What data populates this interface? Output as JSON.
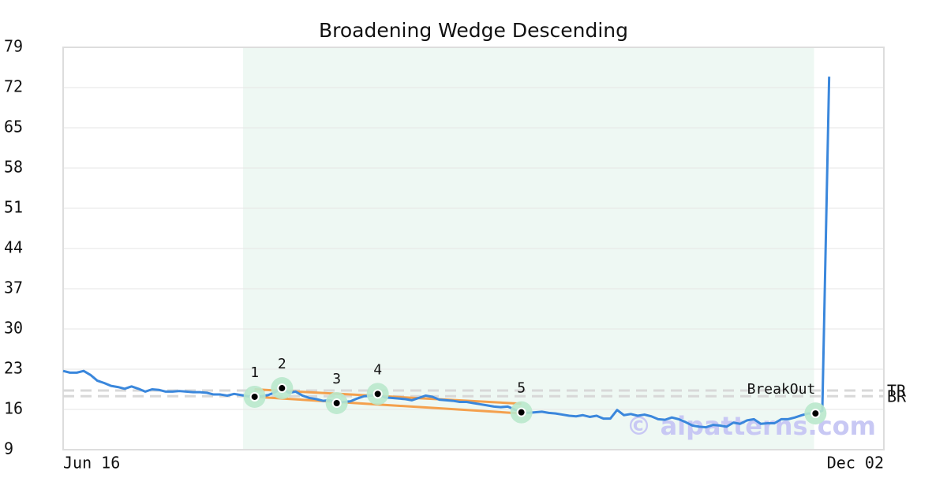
{
  "chart_data": {
    "type": "line",
    "title": "Broadening Wedge Descending",
    "watermark": "© aipatterns.com",
    "color": "#3a87dc",
    "xlim": [
      0,
      120
    ],
    "xticks": [
      {
        "value": 0,
        "label": "Jun 16"
      },
      {
        "value": 120,
        "label": "Dec 02"
      }
    ],
    "ylim": [
      9,
      79
    ],
    "yticks": [
      9,
      16,
      23,
      30,
      37,
      44,
      51,
      58,
      65,
      72,
      79
    ],
    "grid": true,
    "highlight": [
      26.3,
      109.8
    ],
    "x": [
      0,
      1,
      2,
      3,
      4,
      5,
      6,
      7,
      8,
      9,
      10,
      11,
      12,
      13,
      14,
      15,
      16,
      17,
      18,
      19,
      20,
      21,
      22,
      23,
      24,
      25,
      26,
      27,
      28,
      29,
      30,
      31,
      32,
      33,
      34,
      35,
      36,
      37,
      38,
      39,
      40,
      41,
      42,
      43,
      44,
      45,
      46,
      47,
      48,
      49,
      50,
      51,
      52,
      53,
      54,
      55,
      56,
      57,
      58,
      59,
      60,
      61,
      62,
      63,
      64,
      65,
      66,
      67,
      68,
      69,
      70,
      71,
      72,
      73,
      74,
      75,
      76,
      77,
      78,
      79,
      80,
      81,
      82,
      83,
      84,
      85,
      86,
      87,
      88,
      89,
      90,
      91,
      92,
      93,
      94,
      95,
      96,
      97,
      98,
      99,
      100,
      101,
      102,
      103,
      104,
      105,
      106,
      107,
      108,
      109,
      110,
      111,
      112
    ],
    "values": [
      22.7,
      22.4,
      22.4,
      22.7,
      22.0,
      21.0,
      20.6,
      20.1,
      19.9,
      19.6,
      20.0,
      19.6,
      19.1,
      19.5,
      19.4,
      19.1,
      19.1,
      19.2,
      19.1,
      19.0,
      19.0,
      18.9,
      18.6,
      18.6,
      18.4,
      18.7,
      18.5,
      18.3,
      18.2,
      18.3,
      18.5,
      19.0,
      19.7,
      18.9,
      19.1,
      18.4,
      18.0,
      17.8,
      17.5,
      17.6,
      17.1,
      17.3,
      17.4,
      17.9,
      18.3,
      18.4,
      18.7,
      18.1,
      18.0,
      17.9,
      17.8,
      17.6,
      18.0,
      18.4,
      18.2,
      17.7,
      17.6,
      17.5,
      17.3,
      17.3,
      17.1,
      16.9,
      16.7,
      16.5,
      16.4,
      16.5,
      16.0,
      15.5,
      15.4,
      15.5,
      15.6,
      15.4,
      15.3,
      15.1,
      14.9,
      14.8,
      15.0,
      14.7,
      14.9,
      14.4,
      14.4,
      15.9,
      15.0,
      15.2,
      14.9,
      15.1,
      14.8,
      14.3,
      14.2,
      14.6,
      14.3,
      13.8,
      13.2,
      13.0,
      12.9,
      13.3,
      13.2,
      13.0,
      13.7,
      13.5,
      14.1,
      14.3,
      13.5,
      13.6,
      13.6,
      14.3,
      14.3,
      14.6,
      15.0,
      15.3,
      15.3,
      15.8,
      73.9
    ],
    "trendlines": [
      {
        "x": [
          28,
          67
        ],
        "y": [
          19.5,
          17.0
        ],
        "color": "#f4a04d"
      },
      {
        "x": [
          28,
          67
        ],
        "y": [
          18.2,
          15.3
        ],
        "color": "#f4a04d"
      }
    ],
    "hlines": [
      {
        "label": "TR",
        "value": 19.3
      },
      {
        "label": "BR",
        "value": 18.3
      }
    ],
    "points": [
      {
        "label": "1",
        "x": 28,
        "y": 18.2
      },
      {
        "label": "2",
        "x": 32,
        "y": 19.7
      },
      {
        "label": "3",
        "x": 40,
        "y": 17.1
      },
      {
        "label": "4",
        "x": 46,
        "y": 18.7
      },
      {
        "label": "5",
        "x": 67,
        "y": 15.5
      },
      {
        "label": "BreakOut",
        "x": 110,
        "y": 15.3
      }
    ]
  }
}
